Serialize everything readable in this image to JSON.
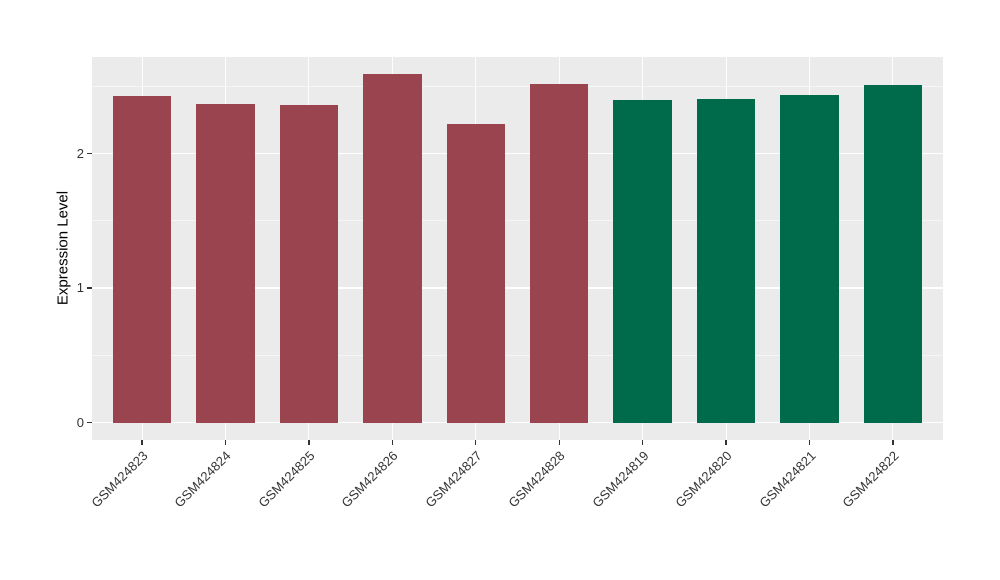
{
  "chart_data": {
    "type": "bar",
    "title": "",
    "ylabel": "Expression Level",
    "xlabel": "",
    "categories": [
      "GSM424823",
      "GSM424824",
      "GSM424825",
      "GSM424826",
      "GSM424827",
      "GSM424828",
      "GSM424819",
      "GSM424820",
      "GSM424821",
      "GSM424822"
    ],
    "values": [
      2.43,
      2.37,
      2.36,
      2.59,
      2.22,
      2.52,
      2.4,
      2.41,
      2.44,
      2.51
    ],
    "groups": [
      "red",
      "red",
      "red",
      "red",
      "red",
      "red",
      "green",
      "green",
      "green",
      "green"
    ],
    "group_colors": {
      "red": "#9A4450",
      "green": "#006B4A"
    },
    "yticks": [
      0,
      1,
      2
    ],
    "minor_yticks": [
      0.5,
      1.5,
      2.5
    ],
    "ylim": [
      -0.13,
      2.72
    ],
    "bar_relative_width": 0.7,
    "panel_bg": "#EBEBEB",
    "grid_color": "#FFFFFF",
    "tick_color": "#333333",
    "legend": "none",
    "x_label_angle_deg": 45
  }
}
